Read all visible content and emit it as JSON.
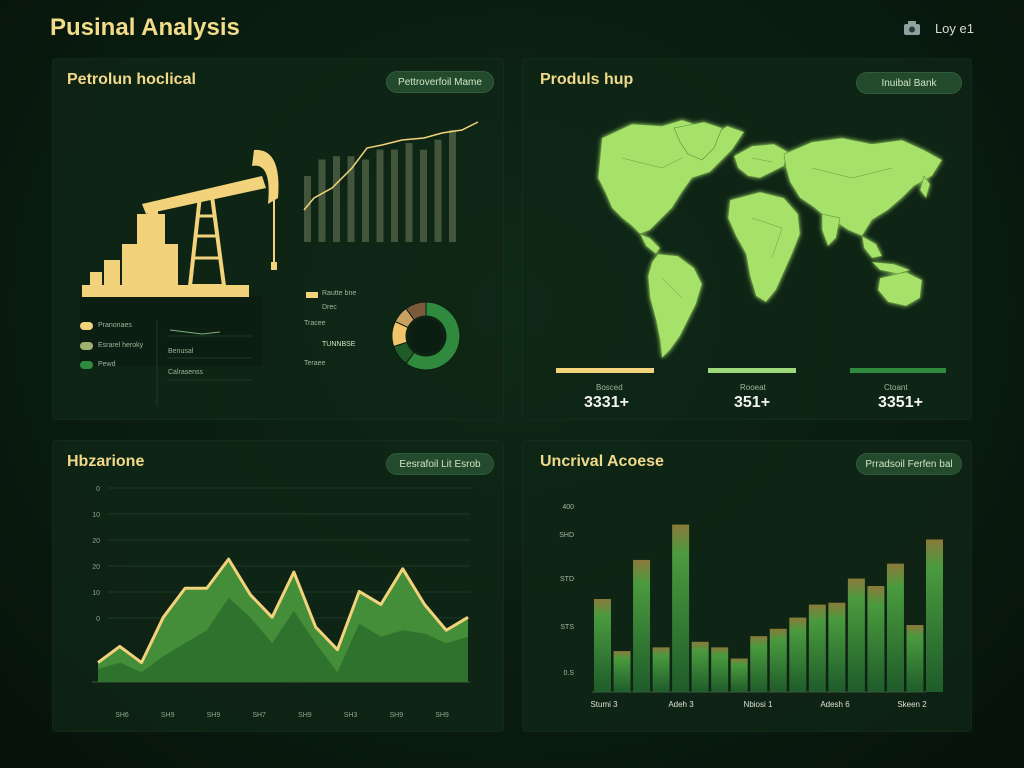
{
  "header": {
    "title": "Pusinal Analysis",
    "user_label": "Loy e1"
  },
  "panels": {
    "petroleum": {
      "title": "Petrolun hoclical",
      "button": "Pettroverfoil Mame",
      "legend": [
        {
          "label": "Pranonaes",
          "color": "#f2d27a"
        },
        {
          "label": "Esrarel heroky",
          "color": "#a0b070"
        },
        {
          "label": "Pewd",
          "color": "#2f8a3e"
        }
      ],
      "mini_rows": [
        "Benusal",
        "Calrasenss"
      ],
      "donut_legend": [
        "Rautte bne",
        "Drec",
        "Tracee",
        "TUNNBSE",
        "Teraee"
      ],
      "donut_segments": [
        {
          "value": 60,
          "color": "#2f8a3e"
        },
        {
          "value": 10,
          "color": "#1f5c2a"
        },
        {
          "value": 12,
          "color": "#f2c56a"
        },
        {
          "value": 8,
          "color": "#c8a060"
        },
        {
          "value": 10,
          "color": "#7a5a3a"
        }
      ]
    },
    "products": {
      "title": "Produls hup",
      "button": "Inuibal Bank",
      "stats": [
        {
          "value": "3331+",
          "caption": "Bosced",
          "color": "#f2d27a"
        },
        {
          "value": "351+",
          "caption": "Rooeat",
          "color": "#9ed87a"
        },
        {
          "value": "3351+",
          "caption": "Ctoant",
          "color": "#2f8a3e"
        }
      ]
    },
    "horizon": {
      "title": "Hbzarione",
      "button": "Eesrafoil Lit Esrob",
      "y_ticks": [
        "0",
        "10",
        "20",
        "20",
        "10",
        "0"
      ],
      "x_ticks": [
        "SH6",
        "SH9",
        "SH9",
        "SH7",
        "SH9",
        "SH3",
        "SH9",
        "SH9"
      ]
    },
    "access": {
      "title": "Uncrival Acoese",
      "button": "Prradsoil Ferfen bal",
      "y_ticks": [
        "400",
        "SHD",
        "STD",
        "STS",
        "0.S"
      ],
      "x_ticks": [
        "Stumi 3",
        "Adeh 3",
        "Nbiosi 1",
        "Adesh 6",
        "Skeen 2"
      ]
    }
  },
  "chart_data": [
    {
      "type": "area",
      "title": "Hbzarione",
      "ylim": [
        0,
        60
      ],
      "series": [
        {
          "values": [
            6,
            11,
            6,
            20,
            29,
            29,
            38,
            27,
            20,
            34,
            17,
            10,
            28,
            24,
            35,
            24,
            16,
            20
          ]
        },
        {
          "values": [
            4,
            6,
            3,
            8,
            12,
            16,
            26,
            20,
            12,
            22,
            12,
            3,
            18,
            14,
            16,
            15,
            12,
            14
          ]
        }
      ]
    },
    {
      "type": "bar",
      "title": "Uncrival Acoese",
      "ylim": [
        0,
        100
      ],
      "values": [
        50,
        22,
        71,
        24,
        90,
        27,
        24,
        18,
        30,
        34,
        40,
        47,
        48,
        61,
        57,
        69,
        36,
        82
      ]
    },
    {
      "type": "bar",
      "title": "Petrolun hoclical",
      "values": [
        20,
        25,
        26,
        26,
        25,
        28,
        28,
        30,
        28,
        31,
        34
      ]
    }
  ]
}
